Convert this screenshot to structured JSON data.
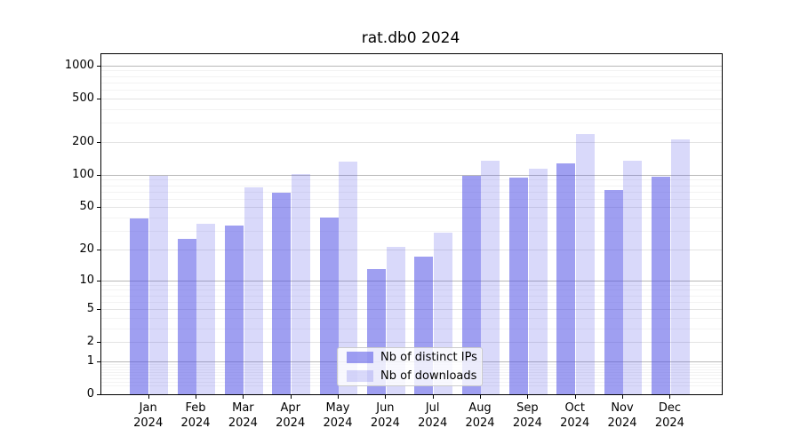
{
  "chart_data": {
    "type": "bar",
    "title": "rat.db0 2024",
    "year": "2024",
    "months": [
      "Jan",
      "Feb",
      "Mar",
      "Apr",
      "May",
      "Jun",
      "Jul",
      "Aug",
      "Sep",
      "Oct",
      "Nov",
      "Dec"
    ],
    "series": [
      {
        "name": "Nb of distinct IPs",
        "color": "#5050e6",
        "alpha": 0.55,
        "values": [
          39,
          25,
          34,
          68,
          40,
          13,
          17,
          97,
          94,
          126,
          72,
          95
        ]
      },
      {
        "name": "Nb of downloads",
        "color": "#5050e6",
        "alpha": 0.22,
        "values": [
          97,
          35,
          76,
          101,
          132,
          21,
          29,
          134,
          113,
          235,
          135,
          210
        ]
      }
    ],
    "yscale": "log(1+x)",
    "ylim": [
      0,
      1300
    ],
    "yticks": [
      0,
      1,
      2,
      5,
      10,
      20,
      50,
      100,
      200,
      500,
      1000
    ],
    "grid": "on",
    "grid_colors": {
      "major": "#b8b8b8",
      "mid": "#e3e3e3",
      "minor": "#f3f3f3"
    },
    "axis_color": "#000000",
    "legend_position": "lower center"
  }
}
